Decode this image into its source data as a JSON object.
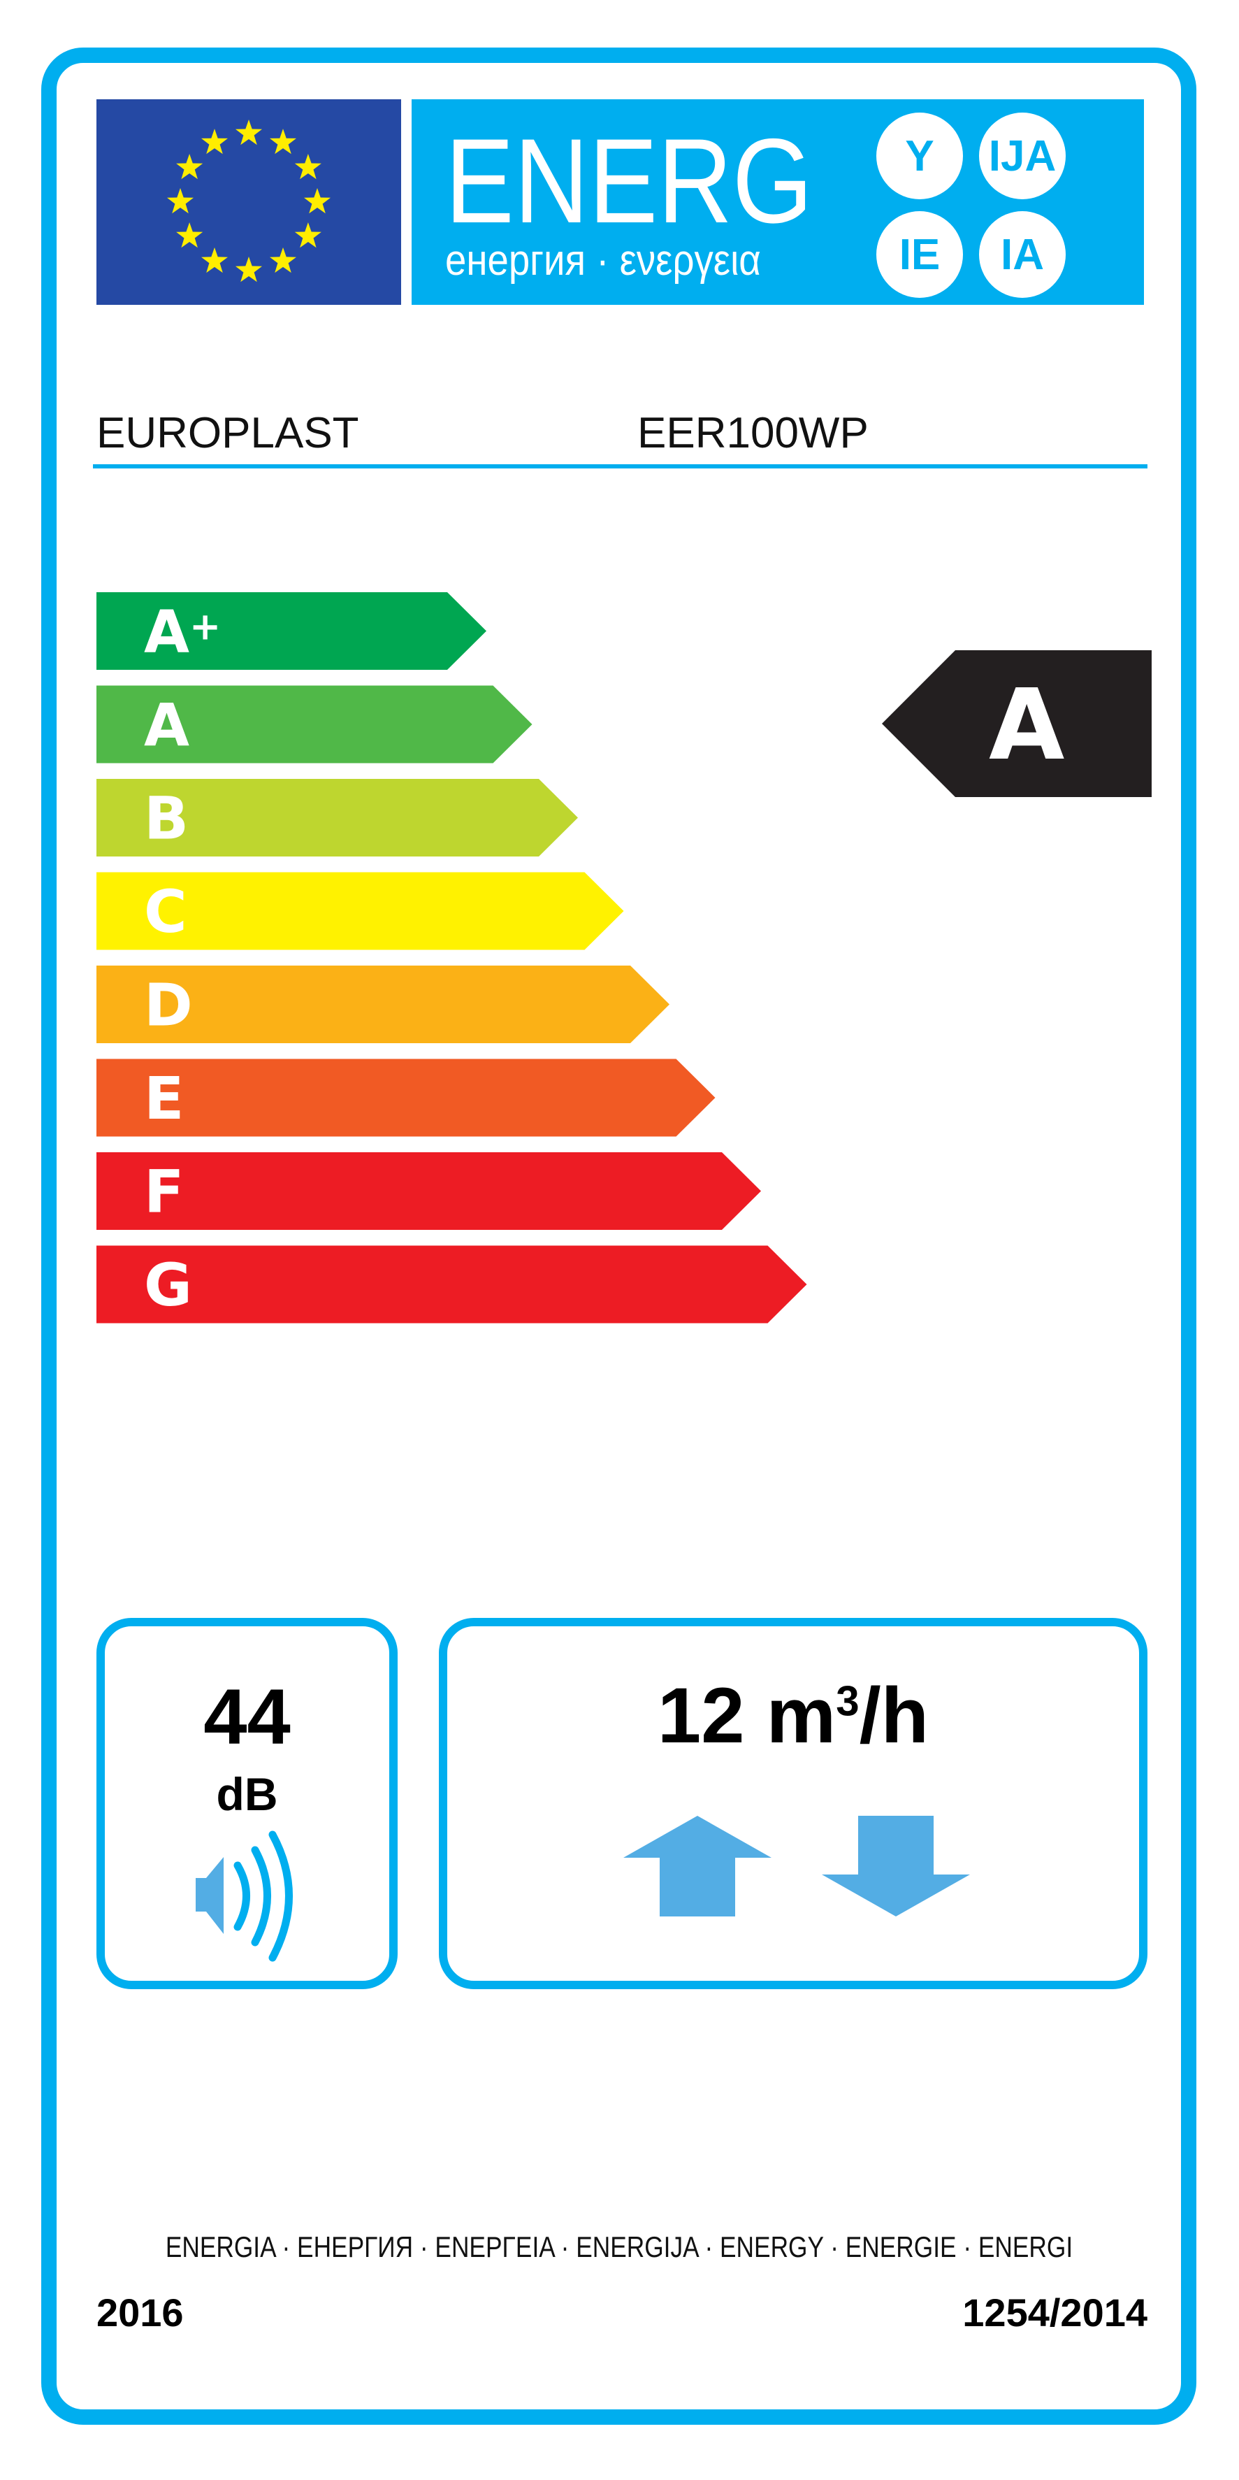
{
  "header": {
    "energy_word": "ENERG",
    "energy_subtitle": "енергия · ενεργεια",
    "suffixes": [
      "Y",
      "IJA",
      "IE",
      "IA"
    ],
    "supplier": "EUROPLAST",
    "model": "EER100WP"
  },
  "scale": {
    "classes": [
      {
        "label": "A+",
        "color": "#00a651"
      },
      {
        "label": "A",
        "color": "#50b848"
      },
      {
        "label": "B",
        "color": "#bed62f"
      },
      {
        "label": "C",
        "color": "#fff200"
      },
      {
        "label": "D",
        "color": "#fbb116"
      },
      {
        "label": "E",
        "color": "#f15a24"
      },
      {
        "label": "F",
        "color": "#ed1c24"
      },
      {
        "label": "G",
        "color": "#ed1c24"
      }
    ],
    "rating": "A",
    "rating_color": "#231f20"
  },
  "noise": {
    "value": "44",
    "unit": "dB",
    "icon": "speaker-icon"
  },
  "flow": {
    "value": "12 m",
    "sup": "3",
    "unit": "/h",
    "icons": [
      "arrow-up-icon",
      "arrow-down-icon"
    ]
  },
  "footer": {
    "languages": "ENERGIA · ЕНЕРГИЯ · ΕΝΕΡΓΕΙΑ · ENERGIJA · ENERGY · ENERGIE · ENERGI",
    "year": "2016",
    "regulation": "1254/2014"
  },
  "colors": {
    "border": "#00aeef",
    "flag": "#2549a4",
    "stars": "#ffed00",
    "arrows": "#53ade4"
  }
}
